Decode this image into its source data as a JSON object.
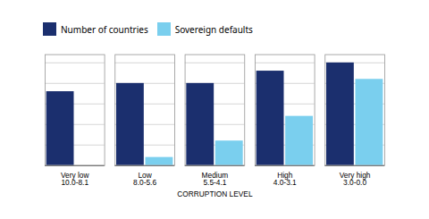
{
  "chart_data": {
    "type": "bar",
    "categories": [
      "Very low\n10.0-8.1",
      "Low\n8.0-5.6",
      "Medium\n5.5-4.1",
      "High\n4.0-3.1",
      "Very high\n3.0-0.0"
    ],
    "series": [
      {
        "name": "Number of countries",
        "color": "#1b2f6e",
        "values": [
          18,
          20,
          20,
          23,
          25
        ]
      },
      {
        "name": "Sovereign defaults",
        "color": "#7acfee",
        "values": [
          0,
          2,
          6,
          12,
          21
        ]
      }
    ],
    "xlabel": "CORRUPTION LEVEL",
    "ylim": [
      0,
      27
    ],
    "yticks": [
      0,
      5,
      10,
      15,
      20,
      25
    ],
    "grid": true,
    "legend": "top-left",
    "tick_labels": "x"
  }
}
